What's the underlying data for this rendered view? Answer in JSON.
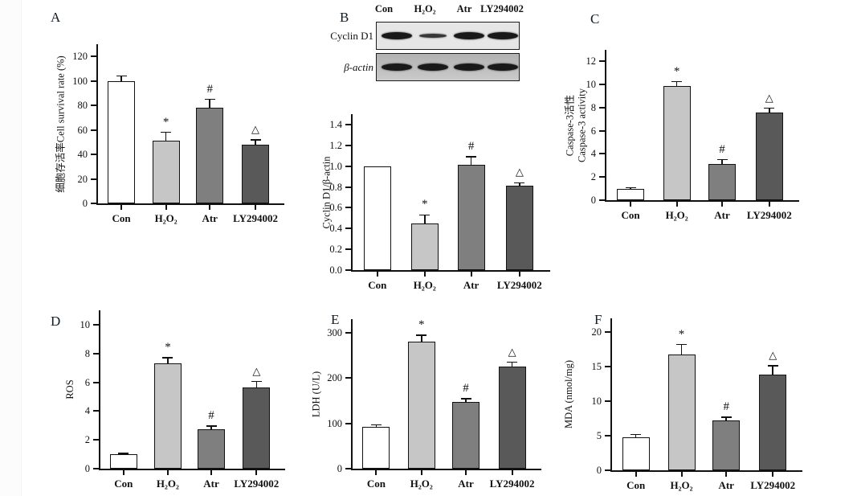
{
  "panels": {
    "a_label": "A",
    "b_label": "B",
    "c_label": "C",
    "d_label": "D",
    "e_label": "E",
    "f_label": "F"
  },
  "blot": {
    "column_labels": [
      "Con",
      "H₂O₂",
      "Atr",
      "LY294002"
    ],
    "rows": [
      {
        "label": "Cyclin D1",
        "band_intensities": [
          1.0,
          0.4,
          1.0,
          0.95
        ]
      },
      {
        "label": "β-actin",
        "band_intensities": [
          1.0,
          0.95,
          1.0,
          0.95
        ]
      }
    ]
  },
  "chart_data": [
    {
      "panel": "A",
      "type": "bar",
      "ylabel": "细胞存活率Cell survival rate (%)",
      "categories": [
        "Con",
        "H₂O₂",
        "Atr",
        "LY294002"
      ],
      "values": [
        100,
        51,
        78,
        48
      ],
      "errors": [
        4,
        7,
        7,
        4
      ],
      "sig_markers": [
        "",
        "*",
        "#",
        "△"
      ],
      "ylim": [
        0,
        130
      ],
      "ytick_labels": [
        "0",
        "20",
        "40",
        "60",
        "80",
        "100",
        "120"
      ],
      "bar_colors": [
        "#ffffff",
        "#c6c6c6",
        "#7f7f7f",
        "#595959"
      ],
      "grid": false,
      "legend": "none"
    },
    {
      "panel": "B",
      "type": "bar",
      "ylabel": "Cyclin D1/β-actin",
      "categories": [
        "Con",
        "H₂O₂",
        "Atr",
        "LY294002"
      ],
      "values": [
        1.0,
        0.45,
        1.01,
        0.81
      ],
      "errors": [
        0,
        0.08,
        0.08,
        0.03
      ],
      "sig_markers": [
        "",
        "*",
        "#",
        "△"
      ],
      "ylim": [
        0,
        1.5
      ],
      "ytick_labels": [
        "0.0",
        "0.2",
        "0.4",
        "0.6",
        "0.8",
        "1.0",
        "1.2",
        "1.4"
      ],
      "bar_colors": [
        "#ffffff",
        "#c6c6c6",
        "#7f7f7f",
        "#595959"
      ],
      "grid": false,
      "legend": "none"
    },
    {
      "panel": "C",
      "type": "bar",
      "ylabel": "Caspase-3活性\nCaspase-3 activity",
      "categories": [
        "Con",
        "H₂O₂",
        "Atr",
        "LY294002"
      ],
      "values": [
        1.0,
        9.9,
        3.1,
        7.6
      ],
      "errors": [
        0.08,
        0.35,
        0.4,
        0.35
      ],
      "sig_markers": [
        "",
        "*",
        "#",
        "△"
      ],
      "ylim": [
        0,
        13
      ],
      "ytick_labels": [
        "0",
        "2",
        "4",
        "6",
        "8",
        "10",
        "12"
      ],
      "bar_colors": [
        "#ffffff",
        "#c6c6c6",
        "#7f7f7f",
        "#595959"
      ],
      "grid": false,
      "legend": "none"
    },
    {
      "panel": "D",
      "type": "bar",
      "ylabel": "ROS",
      "categories": [
        "Con",
        "H₂O₂",
        "Atr",
        "LY294002"
      ],
      "values": [
        1.0,
        7.3,
        2.75,
        5.65
      ],
      "errors": [
        0.07,
        0.4,
        0.2,
        0.4
      ],
      "sig_markers": [
        "",
        "*",
        "#",
        "△"
      ],
      "ylim": [
        0,
        11
      ],
      "ytick_labels": [
        "0",
        "2",
        "4",
        "6",
        "8",
        "10"
      ],
      "bar_colors": [
        "#ffffff",
        "#c6c6c6",
        "#7f7f7f",
        "#595959"
      ],
      "grid": false,
      "legend": "none"
    },
    {
      "panel": "E",
      "type": "bar",
      "ylabel": "LDH (U/L)",
      "categories": [
        "Con",
        "H₂O₂",
        "Atr",
        "LY294002"
      ],
      "values": [
        93,
        280,
        148,
        225
      ],
      "errors": [
        4,
        14,
        6,
        10
      ],
      "sig_markers": [
        "",
        "*",
        "#",
        "△"
      ],
      "ylim": [
        0,
        330
      ],
      "ytick_labels": [
        "0",
        "100",
        "200",
        "300"
      ],
      "bar_colors": [
        "#ffffff",
        "#c6c6c6",
        "#7f7f7f",
        "#595959"
      ],
      "grid": false,
      "legend": "none"
    },
    {
      "panel": "F",
      "type": "bar",
      "ylabel": "MDA (nmol/mg)",
      "categories": [
        "Con",
        "H₂O₂",
        "Atr",
        "LY294002"
      ],
      "values": [
        4.8,
        16.8,
        7.2,
        13.9
      ],
      "errors": [
        0.4,
        1.4,
        0.5,
        1.2
      ],
      "sig_markers": [
        "",
        "*",
        "#",
        "△"
      ],
      "ylim": [
        0,
        22
      ],
      "ytick_labels": [
        "0",
        "5",
        "10",
        "15",
        "20"
      ],
      "bar_colors": [
        "#ffffff",
        "#c6c6c6",
        "#7f7f7f",
        "#595959"
      ],
      "grid": false,
      "legend": "none"
    }
  ]
}
